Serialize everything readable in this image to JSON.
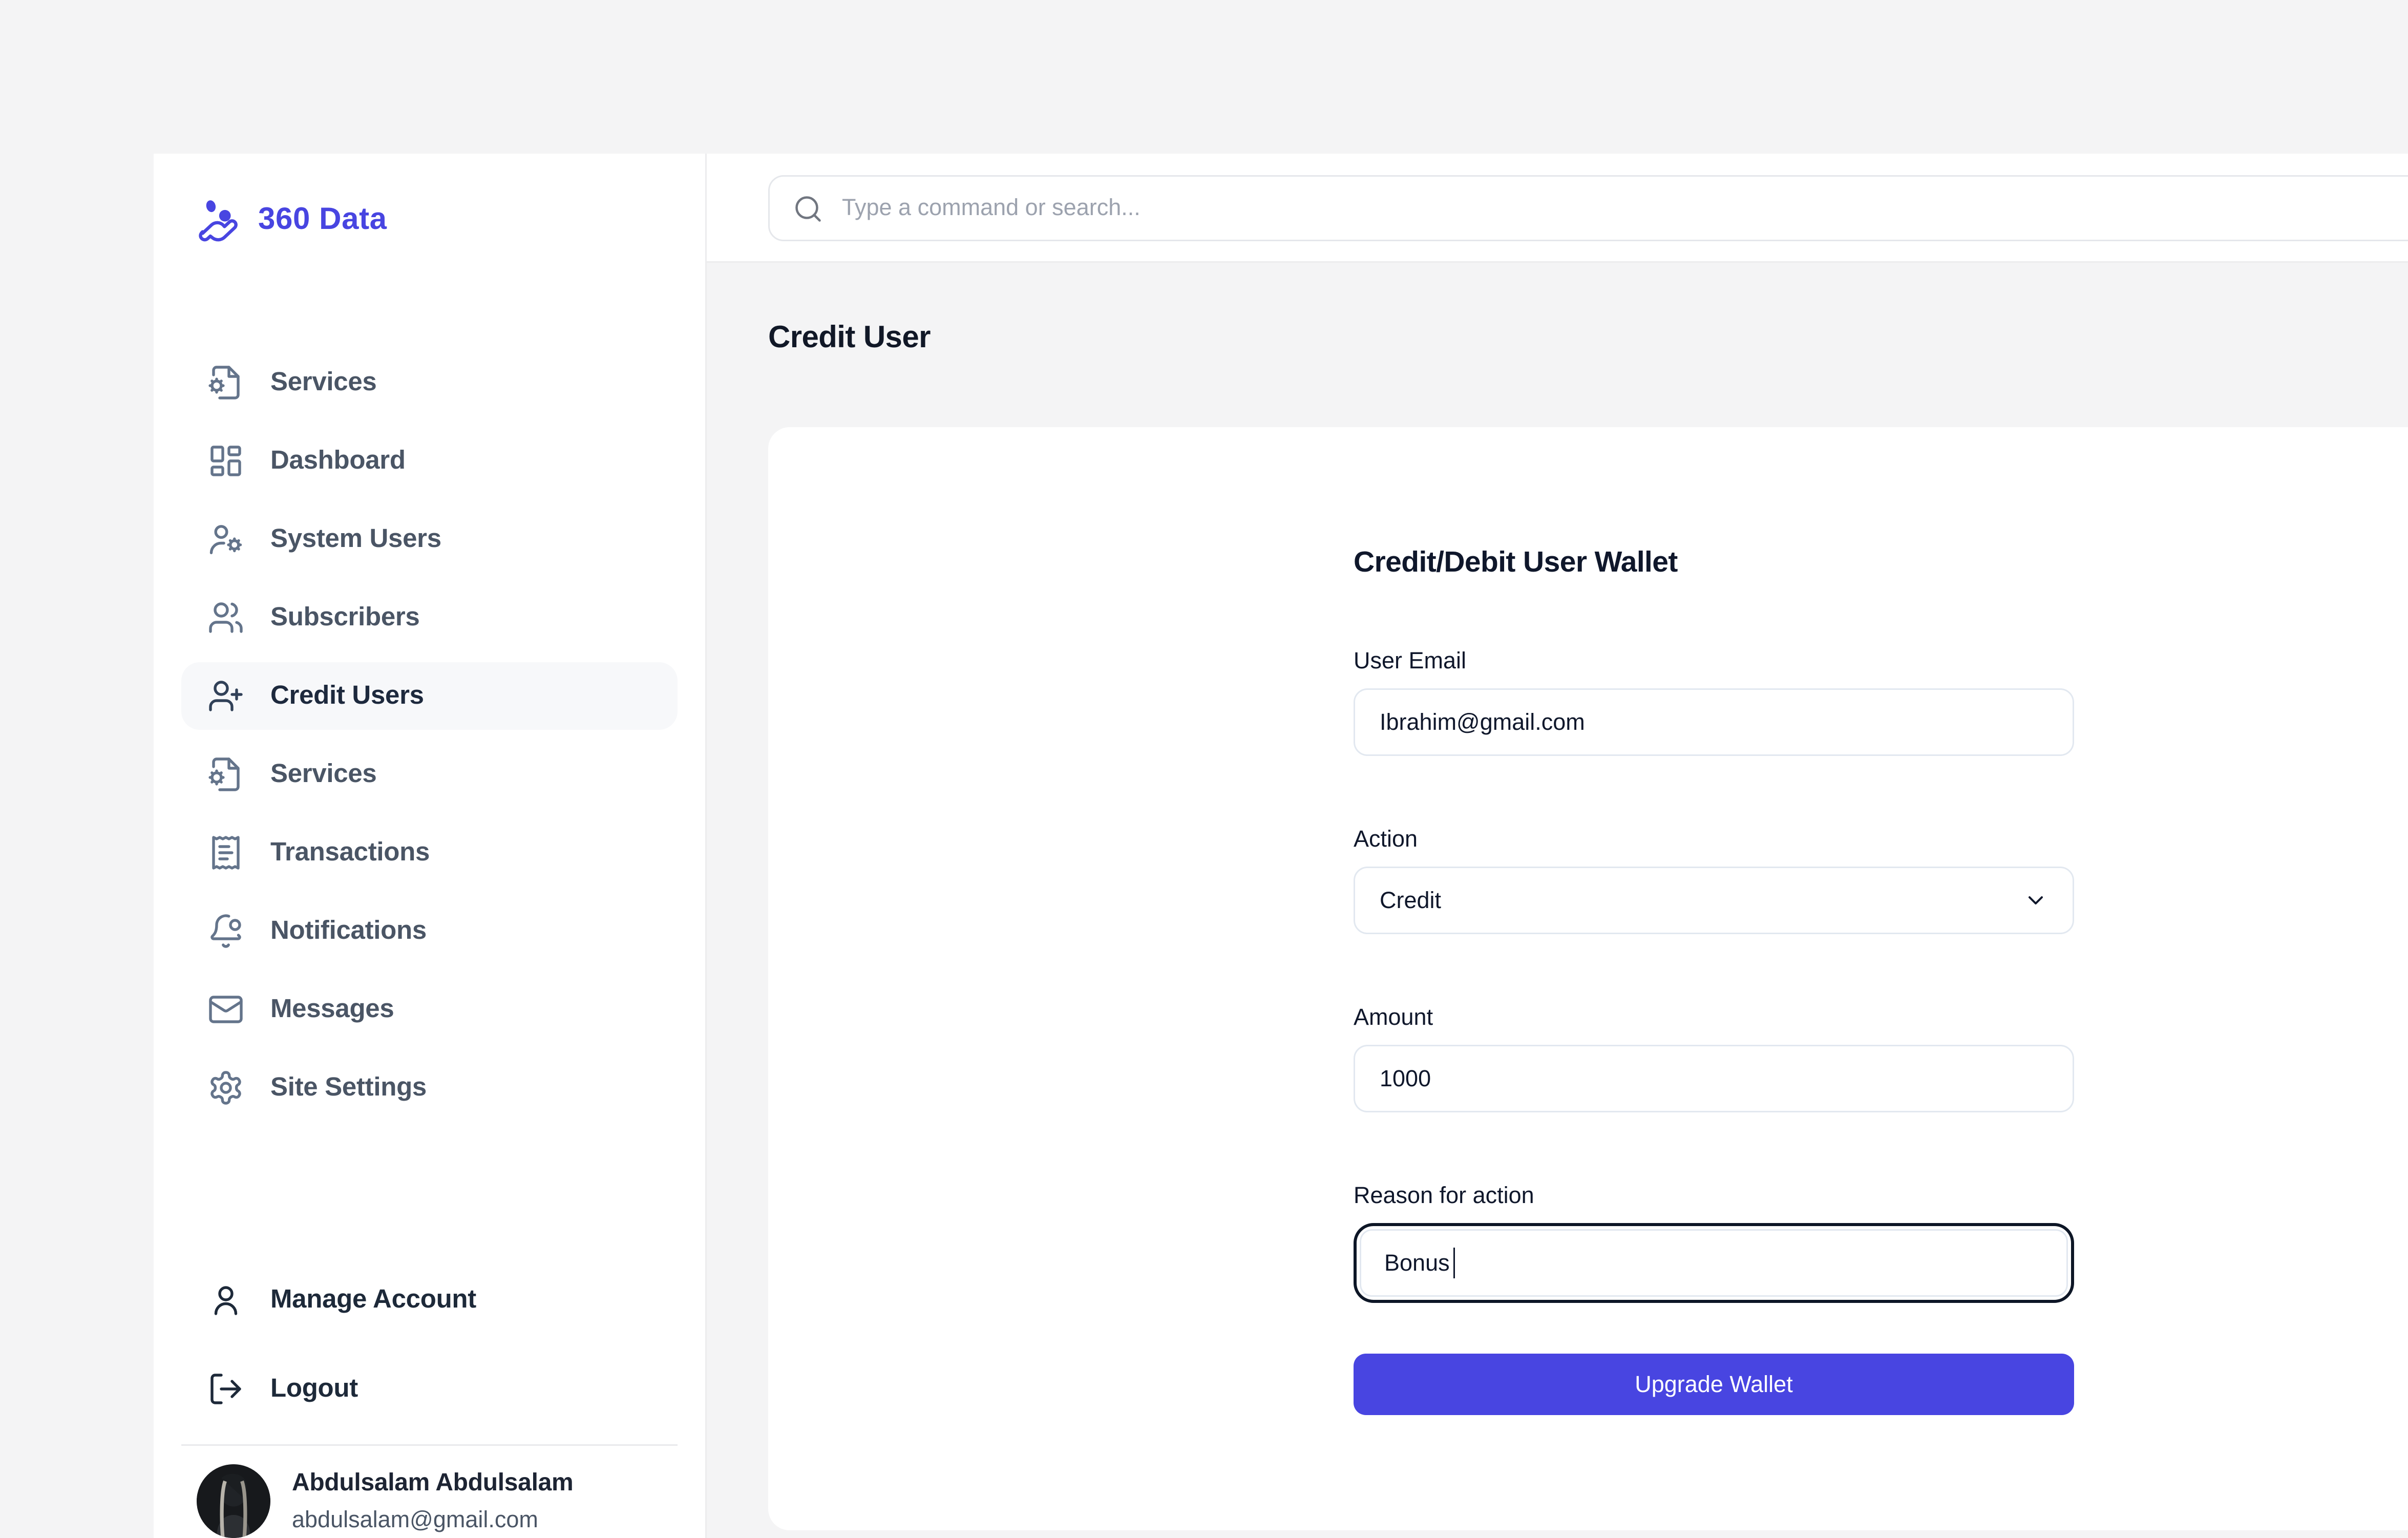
{
  "brand": {
    "name": "360 Data",
    "accent": "#4845E1"
  },
  "search": {
    "placeholder": "Type a command or search..."
  },
  "page": {
    "title": "Credit User"
  },
  "colors": {
    "accent": "#4845E1",
    "page_bg": "#F4F4F5",
    "active_item_bg": "#F7F8FA",
    "panel_bg": "#FFFFFF"
  },
  "sidebar": {
    "items": [
      {
        "label": "Services",
        "icon": "file-cog",
        "active": false
      },
      {
        "label": "Dashboard",
        "icon": "layout-dashboard",
        "active": false
      },
      {
        "label": "System Users",
        "icon": "user-cog",
        "active": false
      },
      {
        "label": "Subscribers",
        "icon": "users",
        "active": false
      },
      {
        "label": "Credit Users",
        "icon": "user-plus",
        "active": true
      },
      {
        "label": "Services",
        "icon": "file-cog",
        "active": false
      },
      {
        "label": "Transactions",
        "icon": "receipt",
        "active": false
      },
      {
        "label": "Notifications",
        "icon": "bell-dot",
        "active": false
      },
      {
        "label": "Messages",
        "icon": "mail",
        "active": false
      },
      {
        "label": "Site Settings",
        "icon": "settings",
        "active": false
      }
    ],
    "footer_items": [
      {
        "label": "Manage Account",
        "icon": "user"
      },
      {
        "label": "Logout",
        "icon": "log-out"
      }
    ],
    "profile": {
      "name": "Abdulsalam Abdulsalam",
      "email": "abdulsalam@gmail.com"
    }
  },
  "form": {
    "heading": "Credit/Debit User Wallet",
    "user_email": {
      "label": "User Email",
      "value": "Ibrahim@gmail.com"
    },
    "action": {
      "label": "Action",
      "value": "Credit"
    },
    "amount": {
      "label": "Amount",
      "value": "1000"
    },
    "reason": {
      "label": "Reason for action",
      "value": "Bonus"
    },
    "submit_label": "Upgrade Wallet"
  }
}
